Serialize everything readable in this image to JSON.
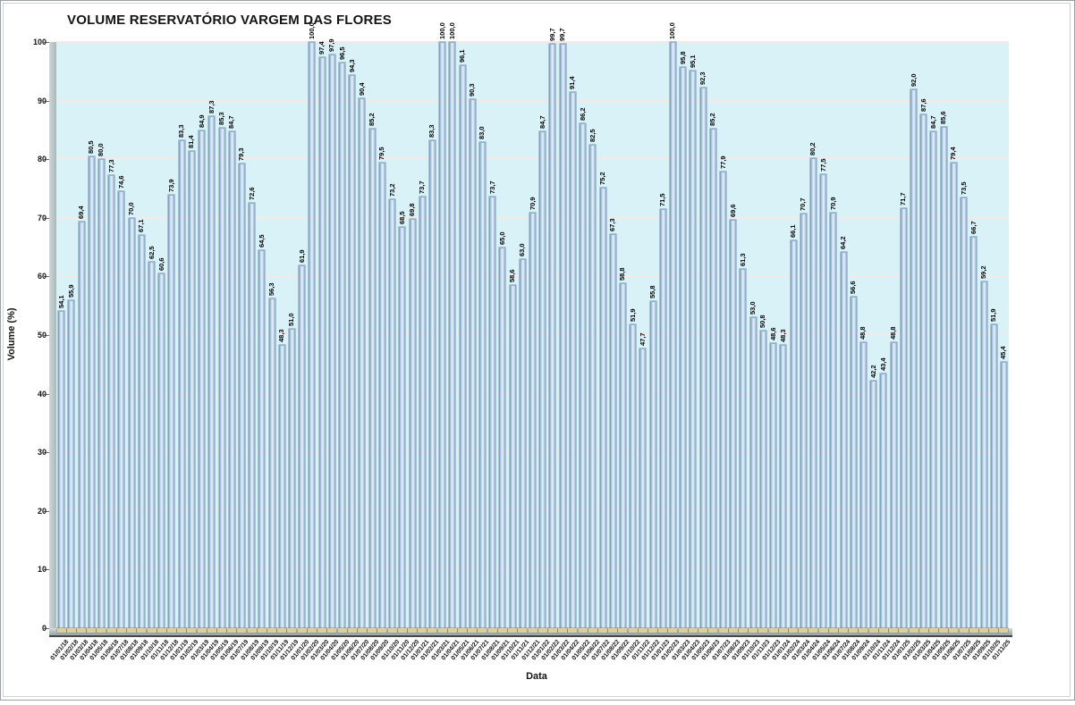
{
  "chart_data": {
    "type": "bar",
    "title": "VOLUME RESERVATÓRIO VARGEM DAS FLORES",
    "xlabel": "Data",
    "ylabel": "Volume (%)",
    "ylim": [
      0,
      100
    ],
    "ytick_interval": 10,
    "ytick_labels": [
      "0",
      "10",
      "20",
      "30",
      "40",
      "50",
      "60",
      "70",
      "80",
      "90",
      "100"
    ],
    "grid": true,
    "legend": "none",
    "style": {
      "plot_bg_color": "#d9f2f8",
      "gridline_color": "#f4e9e6",
      "bar_fill_color": "#cfe0f1",
      "bar_edge_color": "#6e93b7",
      "bar_base_color": "#d8cfa6",
      "wall_color": "#a9b8ba",
      "axis_line_color": "#454545"
    },
    "categories": [
      "01/01/18",
      "01/02/18",
      "01/03/18",
      "01/04/18",
      "01/05/18",
      "01/06/18",
      "01/07/18",
      "01/08/18",
      "01/09/18",
      "01/10/18",
      "01/11/18",
      "01/12/18",
      "01/01/19",
      "01/02/19",
      "01/03/19",
      "01/04/19",
      "01/05/19",
      "01/06/19",
      "01/07/19",
      "01/08/19",
      "01/09/19",
      "01/10/19",
      "01/11/19",
      "01/12/19",
      "01/01/20",
      "01/02/20",
      "01/03/20",
      "01/04/20",
      "01/05/20",
      "01/06/20",
      "01/07/20",
      "01/08/20",
      "01/09/20",
      "01/10/20",
      "01/11/20",
      "01/12/20",
      "01/01/21",
      "01/02/21",
      "01/03/21",
      "01/04/21",
      "01/05/21",
      "01/06/21",
      "01/07/21",
      "01/08/21",
      "01/09/21",
      "01/10/21",
      "01/11/21",
      "01/12/21",
      "01/01/22",
      "01/02/22",
      "01/03/22",
      "01/04/22",
      "01/05/22",
      "01/06/22",
      "01/07/22",
      "01/08/22",
      "01/09/22",
      "01/10/22",
      "01/11/22",
      "01/12/22",
      "01/01/23",
      "01/02/23",
      "01/03/23",
      "01/04/23",
      "01/05/23",
      "01/06/23",
      "01/07/23",
      "01/08/23",
      "01/09/23",
      "01/10/23",
      "01/11/23",
      "01/12/23",
      "01/01/24",
      "01/02/24",
      "01/03/24",
      "01/04/24",
      "01/05/24",
      "01/06/24",
      "01/07/24",
      "01/08/24",
      "01/09/24",
      "01/10/24",
      "01/11/24",
      "01/12/24",
      "01/01/25",
      "01/02/25",
      "01/03/25",
      "01/04/25",
      "01/05/25",
      "01/06/25",
      "01/07/25",
      "01/08/25",
      "01/09/25",
      "01/10/25",
      "01/11/25"
    ],
    "values": [
      54.1,
      55.9,
      69.4,
      80.5,
      80.0,
      77.3,
      74.6,
      70.0,
      67.1,
      62.5,
      60.6,
      73.9,
      83.3,
      81.4,
      84.9,
      87.3,
      85.3,
      84.7,
      79.3,
      72.6,
      64.5,
      56.3,
      48.3,
      51.0,
      61.9,
      100.0,
      97.4,
      97.9,
      96.5,
      94.3,
      90.4,
      85.2,
      79.5,
      73.2,
      68.5,
      69.8,
      73.7,
      83.3,
      100.0,
      100.0,
      96.1,
      90.3,
      83.0,
      73.7,
      65.0,
      58.6,
      63.0,
      70.9,
      84.7,
      99.7,
      99.7,
      91.4,
      86.2,
      82.5,
      75.2,
      67.3,
      58.8,
      51.9,
      47.7,
      55.8,
      71.5,
      100.0,
      95.8,
      95.1,
      92.3,
      85.2,
      77.9,
      69.6,
      61.3,
      53.0,
      50.8,
      48.6,
      48.3,
      66.1,
      70.7,
      80.2,
      77.5,
      70.9,
      64.2,
      56.6,
      48.8,
      42.2,
      43.4,
      48.8,
      71.7,
      92.0,
      87.6,
      84.7,
      85.6,
      79.4,
      73.5,
      66.7,
      59.2,
      51.9,
      45.4
    ],
    "value_labels": [
      "54,1",
      "55,9",
      "69,4",
      "80,5",
      "80,0",
      "77,3",
      "74,6",
      "70,0",
      "67,1",
      "62,5",
      "60,6",
      "73,9",
      "83,3",
      "81,4",
      "84,9",
      "87,3",
      "85,3",
      "84,7",
      "79,3",
      "72,6",
      "64,5",
      "56,3",
      "48,3",
      "51,0",
      "61,9",
      "100,0",
      "97,4",
      "97,9",
      "96,5",
      "94,3",
      "90,4",
      "85,2",
      "79,5",
      "73,2",
      "68,5",
      "69,8",
      "73,7",
      "83,3",
      "100,0",
      "100,0",
      "96,1",
      "90,3",
      "83,0",
      "73,7",
      "65,0",
      "58,6",
      "63,0",
      "70,9",
      "84,7",
      "99,7",
      "99,7",
      "91,4",
      "86,2",
      "82,5",
      "75,2",
      "67,3",
      "58,8",
      "51,9",
      "47,7",
      "55,8",
      "71,5",
      "100,0",
      "95,8",
      "95,1",
      "92,3",
      "85,2",
      "77,9",
      "69,6",
      "61,3",
      "53,0",
      "50,8",
      "48,6",
      "48,3",
      "66,1",
      "70,7",
      "80,2",
      "77,5",
      "70,9",
      "64,2",
      "56,6",
      "48,8",
      "42,2",
      "43,4",
      "48,8",
      "71,7",
      "92,0",
      "87,6",
      "84,7",
      "85,6",
      "79,4",
      "73,5",
      "66,7",
      "59,2",
      "51,9",
      "45,4"
    ]
  }
}
